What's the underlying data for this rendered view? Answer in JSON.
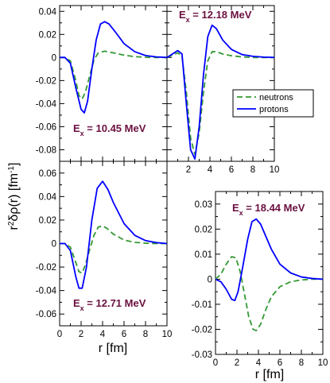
{
  "colors": {
    "neutrons": "#339933",
    "protons": "#0000ff",
    "annotation": "#6b1040",
    "axis": "#000000"
  },
  "figure": {
    "ylabel_prefix": "r",
    "ylabel_sup": "2",
    "ylabel_main": "δρ(r) [fm",
    "ylabel_unit_sup": "-1",
    "ylabel_close": "]",
    "xlabel_left": "r [fm]",
    "xlabel_right": "r [fm]"
  },
  "legend": {
    "position": "top-panel-right",
    "entries": [
      "neutrons",
      "protons"
    ]
  },
  "chart_data": [
    {
      "type": "line",
      "panel": "top-left",
      "annotation": {
        "main": "E",
        "sub": "x",
        "rest": " = 10.45 MeV"
      },
      "xlim": [
        0,
        10
      ],
      "ylim": [
        -0.09,
        0.045
      ],
      "xticks": [
        0,
        2,
        4,
        6,
        8,
        10
      ],
      "xtick_labels": [],
      "yticks": [
        0.04,
        0.02,
        0,
        -0.02,
        -0.04,
        -0.06,
        -0.08
      ],
      "ytick_labels": [
        "0.04",
        "0.02",
        "0",
        "-0.02",
        "-0.04",
        "-0.06",
        "-0.08"
      ],
      "series": [
        {
          "name": "neutrons",
          "style": "dashed",
          "x": [
            0,
            0.5,
            1,
            1.5,
            1.8,
            2.1,
            2.4,
            2.8,
            3.2,
            3.6,
            4.2,
            5,
            6,
            7,
            8,
            9,
            10
          ],
          "y": [
            0,
            0,
            -0.003,
            -0.02,
            -0.033,
            -0.036,
            -0.03,
            -0.016,
            -0.002,
            0.004,
            0.0055,
            0.004,
            0.002,
            0.0007,
            0.0002,
            0,
            0
          ]
        },
        {
          "name": "protons",
          "style": "solid",
          "x": [
            0,
            0.5,
            1,
            1.5,
            2,
            2.3,
            2.6,
            3,
            3.4,
            3.8,
            4.2,
            4.6,
            5.2,
            6,
            7,
            8,
            9,
            10
          ],
          "y": [
            0,
            0,
            -0.005,
            -0.026,
            -0.045,
            -0.048,
            -0.038,
            -0.01,
            0.015,
            0.029,
            0.031,
            0.029,
            0.022,
            0.012,
            0.005,
            0.0017,
            0.0005,
            0
          ]
        }
      ]
    },
    {
      "type": "line",
      "panel": "top-right",
      "annotation": {
        "main": "E",
        "sub": "x",
        "rest": " = 12.18 MeV"
      },
      "xlim": [
        0,
        10
      ],
      "ylim": [
        -0.09,
        0.045
      ],
      "xticks": [
        0,
        2,
        4,
        6,
        8,
        10
      ],
      "xtick_labels": [
        "",
        "2",
        "4",
        "6",
        "8",
        "10"
      ],
      "yticks": [
        0.04,
        0.02,
        0,
        -0.02,
        -0.04,
        -0.06,
        -0.08
      ],
      "ytick_labels": [],
      "series": [
        {
          "name": "neutrons",
          "style": "dashed",
          "x": [
            0,
            0.5,
            1,
            1.4,
            1.8,
            2.2,
            2.6,
            3,
            3.4,
            3.8,
            4.2,
            4.6,
            5.2,
            6,
            7,
            8,
            9,
            10
          ],
          "y": [
            0,
            0.002,
            0.004,
            0.001,
            -0.03,
            -0.07,
            -0.084,
            -0.065,
            -0.03,
            -0.003,
            0.005,
            0.005,
            0.003,
            0.0015,
            0.0005,
            0,
            0,
            0
          ]
        },
        {
          "name": "protons",
          "style": "solid",
          "x": [
            0,
            0.5,
            1,
            1.4,
            1.8,
            2.2,
            2.6,
            3,
            3.4,
            3.8,
            4.2,
            4.6,
            5.2,
            6,
            7,
            8,
            9,
            10
          ],
          "y": [
            0,
            0.003,
            0.006,
            0.003,
            -0.04,
            -0.08,
            -0.088,
            -0.06,
            -0.015,
            0.018,
            0.028,
            0.025,
            0.015,
            0.007,
            0.0025,
            0.001,
            0.0003,
            0
          ]
        }
      ]
    },
    {
      "type": "line",
      "panel": "bottom-left",
      "annotation": {
        "main": "E",
        "sub": "x",
        "rest": " = 12.71 MeV"
      },
      "xlim": [
        0,
        10
      ],
      "ylim": [
        -0.07,
        0.07
      ],
      "xticks": [
        0,
        2,
        4,
        6,
        8,
        10
      ],
      "xtick_labels": [
        "0",
        "2",
        "4",
        "6",
        "8",
        "10"
      ],
      "yticks": [
        0.06,
        0.04,
        0.02,
        0,
        -0.02,
        -0.04,
        -0.06
      ],
      "ytick_labels": [
        "0.06",
        "0.04",
        "0.02",
        "0",
        "-0.02",
        "-0.04",
        "-0.06"
      ],
      "series": [
        {
          "name": "neutrons",
          "style": "dashed",
          "x": [
            0,
            0.5,
            1,
            1.5,
            1.8,
            2.1,
            2.4,
            2.8,
            3.2,
            3.6,
            4,
            4.4,
            5,
            6,
            7,
            8,
            9,
            10
          ],
          "y": [
            0,
            0,
            -0.003,
            -0.016,
            -0.024,
            -0.025,
            -0.018,
            -0.005,
            0.007,
            0.014,
            0.015,
            0.013,
            0.008,
            0.003,
            0.001,
            0.0003,
            0,
            0
          ]
        },
        {
          "name": "protons",
          "style": "solid",
          "x": [
            0,
            0.5,
            1,
            1.5,
            1.8,
            2.1,
            2.5,
            3,
            3.5,
            4,
            4.5,
            5,
            6,
            7,
            8,
            9,
            10
          ],
          "y": [
            0,
            0,
            -0.006,
            -0.028,
            -0.038,
            -0.038,
            -0.02,
            0.02,
            0.047,
            0.053,
            0.046,
            0.035,
            0.017,
            0.007,
            0.0025,
            0.0008,
            0
          ]
        }
      ]
    },
    {
      "type": "line",
      "panel": "bottom-right",
      "annotation": {
        "main": "E",
        "sub": "x",
        "rest": " = 18.44 MeV"
      },
      "xlim": [
        0,
        10
      ],
      "ylim": [
        -0.03,
        0.035
      ],
      "xticks": [
        0,
        2,
        4,
        6,
        8,
        10
      ],
      "xtick_labels": [
        "0",
        "2",
        "4",
        "6",
        "8",
        "10"
      ],
      "yticks": [
        0.03,
        0.02,
        0.01,
        0,
        -0.01,
        -0.02,
        -0.03
      ],
      "ytick_labels": [
        "0.03",
        "0.02",
        "0.01",
        "0",
        "-0.01",
        "-0.02",
        "-0.03"
      ],
      "series": [
        {
          "name": "neutrons",
          "style": "dashed",
          "x": [
            0,
            0.5,
            1,
            1.5,
            1.9,
            2.3,
            2.7,
            3.1,
            3.5,
            3.8,
            4.2,
            4.7,
            5.2,
            6,
            7,
            8,
            9,
            10
          ],
          "y": [
            0,
            0.002,
            0.006,
            0.009,
            0.0085,
            0.003,
            -0.006,
            -0.015,
            -0.02,
            -0.0205,
            -0.018,
            -0.012,
            -0.007,
            -0.003,
            -0.001,
            -0.0003,
            0,
            0
          ]
        },
        {
          "name": "protons",
          "style": "solid",
          "x": [
            0,
            0.5,
            1,
            1.5,
            1.8,
            2.1,
            2.5,
            3,
            3.4,
            3.8,
            4.2,
            4.7,
            5.2,
            6,
            7,
            8,
            9,
            10
          ],
          "y": [
            0,
            -0.001,
            -0.004,
            -0.008,
            -0.0085,
            -0.005,
            0.004,
            0.016,
            0.023,
            0.024,
            0.022,
            0.017,
            0.012,
            0.006,
            0.0025,
            0.0009,
            0.0003,
            0
          ]
        }
      ]
    }
  ]
}
